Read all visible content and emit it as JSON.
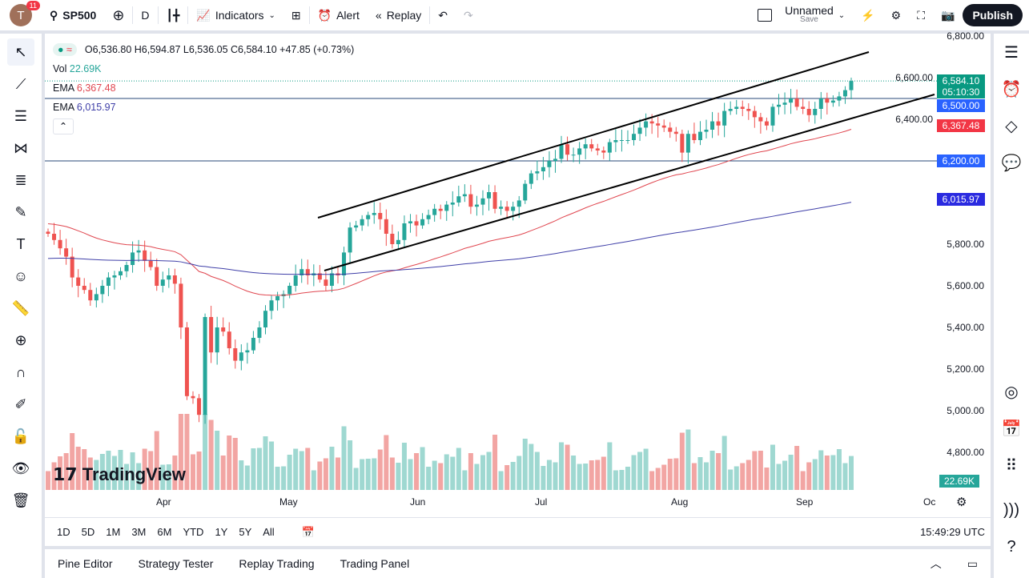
{
  "topbar": {
    "avatar_letter": "T",
    "notifications": "11",
    "symbol": "SP500",
    "interval": "D",
    "indicators": "Indicators",
    "alert": "Alert",
    "replay": "Replay",
    "layout_name": "Unnamed",
    "layout_save": "Save",
    "publish": "Publish"
  },
  "legend": {
    "ohlc": "O6,536.80 H6,594.87 L6,536.05 C6,584.10 +47.85 (+0.73%)",
    "vol_label": "Vol",
    "vol_value": "22.69K",
    "ema1_label": "EMA",
    "ema1_value": "6,367.48",
    "ema2_label": "EMA",
    "ema2_value": "6,015.97"
  },
  "price_axis": [
    "6,800.00",
    "6,600.00",
    "6,400.00",
    "5,800.00",
    "5,600.00",
    "5,400.00",
    "5,200.00",
    "5,000.00",
    "4,800.00"
  ],
  "tags": {
    "last_price": "6,584.10",
    "countdown": "05:10:30",
    "line_6500": "6,500.00",
    "ema1": "6,367.48",
    "line_6200": "6,200.00",
    "ema2": "6,015.97",
    "volume": "22.69K"
  },
  "time_axis": [
    "Apr",
    "May",
    "Jun",
    "Jul",
    "Aug",
    "Sep",
    "Oc"
  ],
  "ranges": [
    "1D",
    "5D",
    "1M",
    "3M",
    "6M",
    "YTD",
    "1Y",
    "5Y",
    "All"
  ],
  "clock": "15:49:29 UTC",
  "panel_tabs": [
    "Pine Editor",
    "Strategy Tester",
    "Replay Trading",
    "Trading Panel"
  ],
  "watermark": "TradingView",
  "colors": {
    "up": "#26a69a",
    "down": "#ef5350",
    "ema_fast": "#e0464f",
    "ema_slow": "#3f3fa8",
    "last": "#089981",
    "hline": "#2962ff"
  },
  "chart_data": {
    "type": "candlestick",
    "ylim": [
      4800,
      6800
    ],
    "closes": [
      5850,
      5820,
      5780,
      5740,
      5640,
      5600,
      5580,
      5530,
      5560,
      5600,
      5640,
      5650,
      5670,
      5700,
      5760,
      5770,
      5720,
      5690,
      5600,
      5630,
      5650,
      5610,
      5400,
      5070,
      5060,
      4980,
      5450,
      5280,
      5400,
      5380,
      5300,
      5240,
      5280,
      5290,
      5350,
      5400,
      5480,
      5530,
      5550,
      5560,
      5600,
      5650,
      5680,
      5650,
      5660,
      5630,
      5600,
      5660,
      5650,
      5760,
      5880,
      5890,
      5920,
      5940,
      5950,
      5920,
      5850,
      5800,
      5820,
      5900,
      5910,
      5890,
      5920,
      5940,
      5970,
      5960,
      5990,
      6000,
      6030,
      6040,
      5980,
      5990,
      6020,
      6050,
      5970,
      5980,
      5960,
      5980,
      6010,
      6090,
      6140,
      6150,
      6170,
      6200,
      6210,
      6280,
      6230,
      6230,
      6260,
      6280,
      6260,
      6250,
      6240,
      6290,
      6300,
      6300,
      6300,
      6330,
      6360,
      6390,
      6380,
      6370,
      6360,
      6340,
      6330,
      6240,
      6330,
      6300,
      6340,
      6350,
      6390,
      6370,
      6440,
      6450,
      6460,
      6450,
      6440,
      6410,
      6390,
      6370,
      6460,
      6470,
      6480,
      6500,
      6460,
      6450,
      6420,
      6450,
      6500,
      6480,
      6490,
      6510,
      6540,
      6584
    ],
    "horizontal_lines": [
      6500,
      6200
    ],
    "channel": "ascending"
  }
}
